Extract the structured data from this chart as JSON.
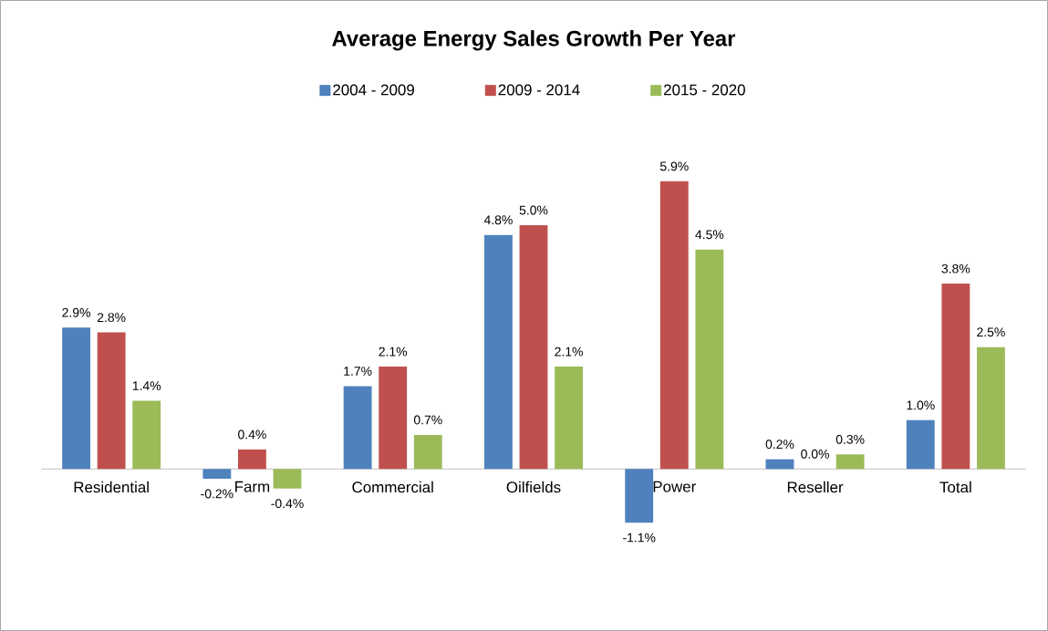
{
  "chart_data": {
    "type": "bar",
    "title": "Average Energy Sales Growth Per Year",
    "categories": [
      "Residential",
      "Farm",
      "Commercial",
      "Oilfields",
      "Power",
      "Reseller",
      "Total"
    ],
    "series": [
      {
        "name": "2004 - 2009",
        "color": "#4f81bd",
        "values": [
          2.9,
          -0.2,
          1.7,
          4.8,
          -1.1,
          0.2,
          1.0
        ],
        "value_labels": [
          "2.9%",
          "-0.2%",
          "1.7%",
          "4.8%",
          "-1.1%",
          "0.2%",
          "1.0%"
        ]
      },
      {
        "name": "2009 - 2014",
        "color": "#c0504d",
        "values": [
          2.8,
          0.4,
          2.1,
          5.0,
          5.9,
          0.0,
          3.8
        ],
        "value_labels": [
          "2.8%",
          "0.4%",
          "2.1%",
          "5.0%",
          "5.9%",
          "0.0%",
          "3.8%"
        ]
      },
      {
        "name": "2015 - 2020",
        "color": "#9bbb59",
        "values": [
          1.4,
          -0.4,
          0.7,
          2.1,
          4.5,
          0.3,
          2.5
        ],
        "value_labels": [
          "1.4%",
          "-0.4%",
          "0.7%",
          "2.1%",
          "4.5%",
          "0.3%",
          "2.5%"
        ]
      }
    ],
    "legend": "top"
  }
}
